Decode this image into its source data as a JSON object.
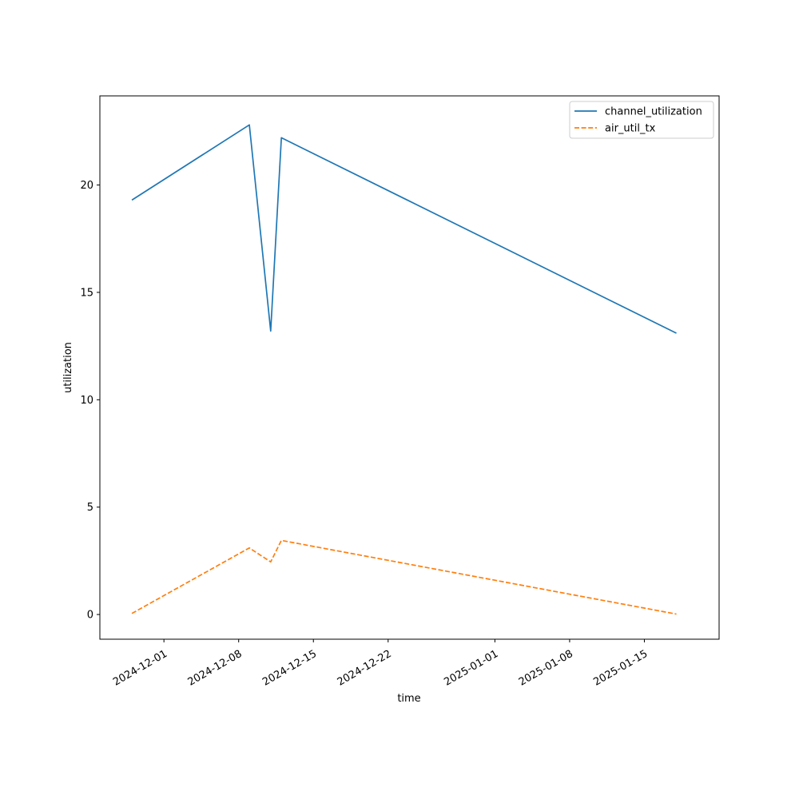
{
  "chart_data": {
    "type": "line",
    "xlabel": "time",
    "ylabel": "utilization",
    "x_type": "date",
    "xlim": [
      "2024-11-25",
      "2025-01-22"
    ],
    "ylim": [
      -1.15,
      24.15
    ],
    "x_ticks": [
      "2024-12-01",
      "2024-12-08",
      "2024-12-15",
      "2024-12-22",
      "2025-01-01",
      "2025-01-08",
      "2025-01-15"
    ],
    "y_ticks": [
      0,
      5,
      10,
      15,
      20
    ],
    "grid": false,
    "legend_position": "upper right",
    "series": [
      {
        "name": "channel_utilization",
        "color": "#1f77b4",
        "style": "solid",
        "points": [
          {
            "x": "2024-11-28",
            "y": 19.3
          },
          {
            "x": "2024-12-09",
            "y": 22.8
          },
          {
            "x": "2024-12-11",
            "y": 13.2
          },
          {
            "x": "2024-12-12",
            "y": 22.2
          },
          {
            "x": "2025-01-18",
            "y": 13.1
          }
        ]
      },
      {
        "name": "air_util_tx",
        "color": "#ff7f0e",
        "style": "dashed",
        "points": [
          {
            "x": "2024-11-28",
            "y": 0.05
          },
          {
            "x": "2024-12-09",
            "y": 3.1
          },
          {
            "x": "2024-12-11",
            "y": 2.45
          },
          {
            "x": "2024-12-12",
            "y": 3.45
          },
          {
            "x": "2025-01-18",
            "y": 0.02
          }
        ]
      }
    ]
  }
}
